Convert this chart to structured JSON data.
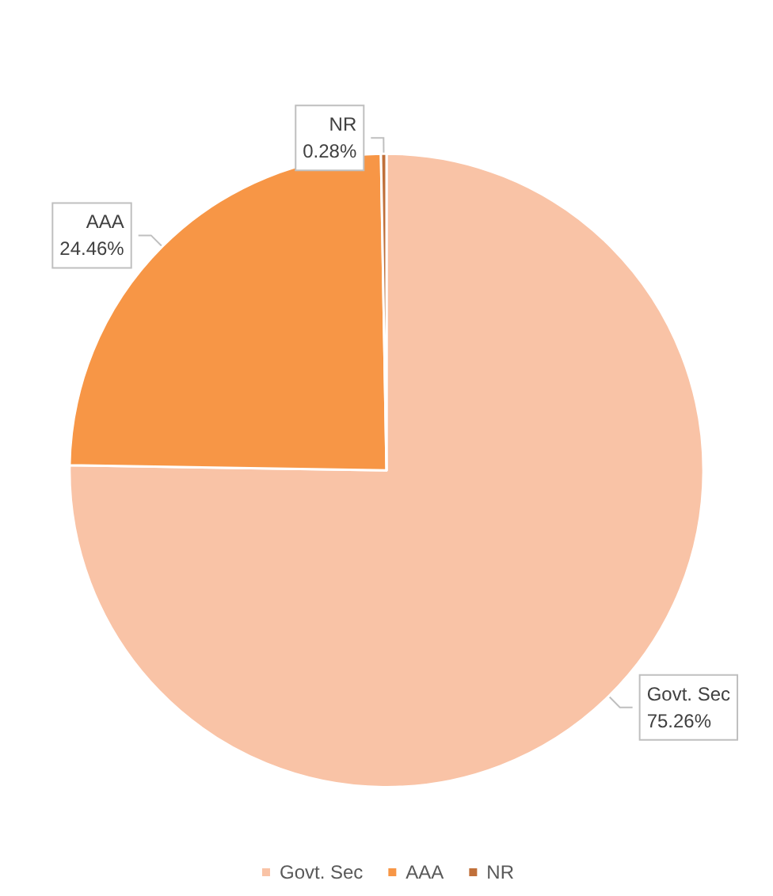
{
  "chart_data": {
    "type": "pie",
    "categories": [
      "Govt. Sec",
      "AAA",
      "NR"
    ],
    "values": [
      75.26,
      24.46,
      0.28
    ],
    "value_labels": [
      "75.26%",
      "24.46%",
      "0.28%"
    ],
    "colors": [
      "#f9c3a6",
      "#f79646",
      "#c0703a"
    ],
    "legend": "bottom"
  }
}
